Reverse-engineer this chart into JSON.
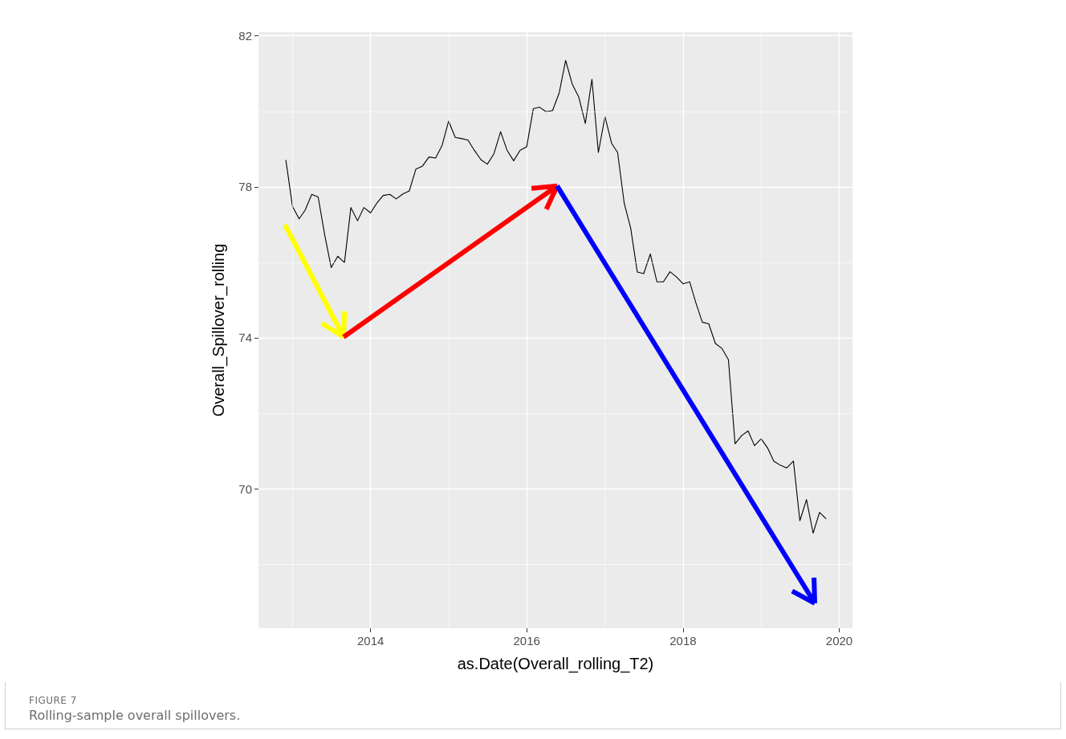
{
  "chart_data": {
    "type": "line",
    "xlabel": "as.Date(Overall_rolling_T2)",
    "ylabel": "Overall_Spillover_rolling",
    "annotations": [
      "FIGURE 7",
      "Rolling-sample overall spillovers."
    ],
    "x": [
      "2012-12",
      "2013-01",
      "2013-02",
      "2013-03",
      "2013-04",
      "2013-05",
      "2013-06",
      "2013-07",
      "2013-08",
      "2013-09",
      "2013-10",
      "2013-11",
      "2013-12",
      "2014-01",
      "2014-02",
      "2014-03",
      "2014-04",
      "2014-05",
      "2014-06",
      "2014-07",
      "2014-08",
      "2014-09",
      "2014-10",
      "2014-11",
      "2014-12",
      "2015-01",
      "2015-02",
      "2015-03",
      "2015-04",
      "2015-05",
      "2015-06",
      "2015-07",
      "2015-08",
      "2015-09",
      "2015-10",
      "2015-11",
      "2015-12",
      "2016-01",
      "2016-02",
      "2016-03",
      "2016-04",
      "2016-05",
      "2016-06",
      "2016-07",
      "2016-08",
      "2016-09",
      "2016-10",
      "2016-11",
      "2016-12",
      "2017-01",
      "2017-02",
      "2017-03",
      "2017-04",
      "2017-05",
      "2017-06",
      "2017-07",
      "2017-08",
      "2017-09",
      "2017-10",
      "2017-11",
      "2017-12",
      "2018-01",
      "2018-02",
      "2018-03",
      "2018-04",
      "2018-05",
      "2018-06",
      "2018-07",
      "2018-08",
      "2018-09",
      "2018-10",
      "2018-11",
      "2018-12",
      "2019-01",
      "2019-02",
      "2019-03",
      "2019-04",
      "2019-05",
      "2019-06",
      "2019-07",
      "2019-08",
      "2019-09",
      "2019-10",
      "2019-11"
    ],
    "series": [
      {
        "color": "#000000",
        "values": [
          78.71,
          77.48,
          77.15,
          77.38,
          77.8,
          77.73,
          76.71,
          75.86,
          76.16,
          75.99,
          77.45,
          77.1,
          77.45,
          77.31,
          77.58,
          77.77,
          77.8,
          77.68,
          77.81,
          77.89,
          78.47,
          78.55,
          78.79,
          78.76,
          79.09,
          79.74,
          79.31,
          79.28,
          79.24,
          78.97,
          78.72,
          78.6,
          78.88,
          79.46,
          78.97,
          78.69,
          78.97,
          79.06,
          80.07,
          80.11,
          79.99,
          80.02,
          80.49,
          81.35,
          80.72,
          80.37,
          79.68,
          80.85,
          78.91,
          79.86,
          79.15,
          78.91,
          77.56,
          76.91,
          75.74,
          75.7,
          76.22,
          75.48,
          75.48,
          75.75,
          75.61,
          75.43,
          75.48,
          74.94,
          74.41,
          74.37,
          73.85,
          73.72,
          73.42,
          71.19,
          71.4,
          71.53,
          71.14,
          71.32,
          71.07,
          70.73,
          70.62,
          70.55,
          70.73,
          69.15,
          69.71,
          68.82,
          69.37,
          69.2
        ]
      }
    ],
    "xlim": [
      "2012-07-26",
      "2020-03-03"
    ],
    "xticks": [
      "2014",
      "2016",
      "2018",
      "2020"
    ],
    "ylim": [
      66.3,
      82.1
    ],
    "yticks": [
      70,
      74,
      78,
      82
    ],
    "grid": true,
    "marker": "none",
    "line_style": "solid"
  }
}
